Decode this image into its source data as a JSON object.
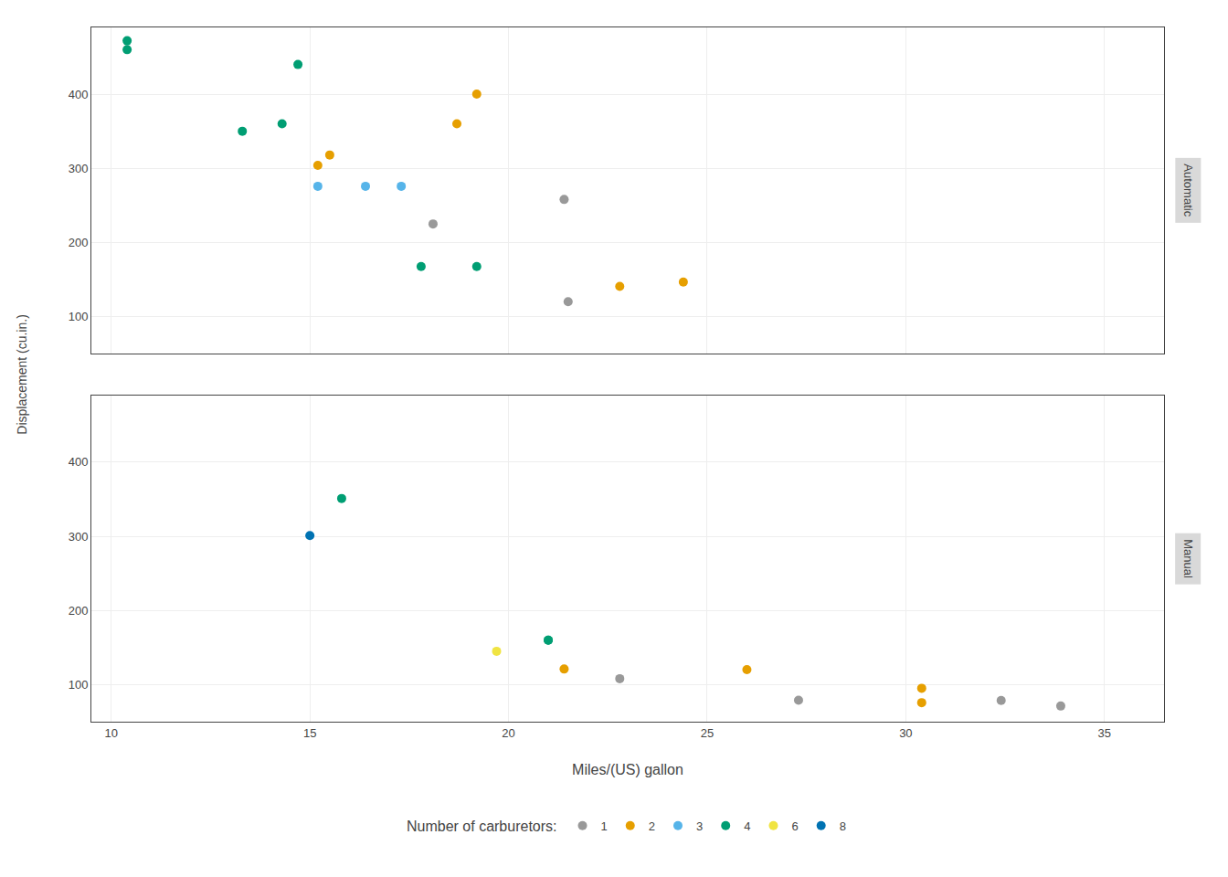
{
  "chart_data": {
    "type": "scatter",
    "xlabel": "Miles/(US) gallon",
    "ylabel": "Displacement (cu.in.)",
    "legend_title": "Number of carburetors:",
    "facets": [
      "Automatic",
      "Manual"
    ],
    "xlim": [
      9.5,
      36.5
    ],
    "ylim": [
      50,
      490
    ],
    "xticks": [
      10,
      15,
      20,
      25,
      30,
      35
    ],
    "yticks": [
      100,
      200,
      300,
      400
    ],
    "grid": true,
    "legend": "bottom",
    "series": [
      {
        "name": "1",
        "color": "#999999",
        "x": [
          [
            21.4,
            18.1,
            21.5
          ],
          [
            22.8,
            32.4,
            33.9,
            27.3
          ]
        ],
        "values": [
          [
            258.0,
            225.0,
            120.1
          ],
          [
            108.0,
            78.7,
            71.1,
            79.0
          ]
        ]
      },
      {
        "name": "2",
        "color": "#E69F00",
        "x": [
          [
            18.7,
            24.4,
            22.8,
            15.5,
            15.2,
            19.2
          ],
          [
            30.4,
            26.0,
            30.4,
            21.4
          ]
        ],
        "values": [
          [
            360.0,
            146.7,
            140.8,
            318.0,
            304.0,
            400.0
          ],
          [
            75.7,
            120.3,
            95.1,
            121.0
          ]
        ]
      },
      {
        "name": "3",
        "color": "#56B4E9",
        "x": [
          [
            16.4,
            17.3,
            15.2
          ],
          []
        ],
        "values": [
          [
            275.8,
            275.8,
            275.8
          ],
          []
        ]
      },
      {
        "name": "4",
        "color": "#009E73",
        "x": [
          [
            14.3,
            19.2,
            17.8,
            10.4,
            10.4,
            14.7,
            13.3
          ],
          [
            21.0,
            21.0,
            15.8
          ]
        ],
        "values": [
          [
            360.0,
            167.6,
            167.6,
            472.0,
            460.0,
            440.0,
            350.0
          ],
          [
            160.0,
            160.0,
            351.0
          ]
        ]
      },
      {
        "name": "6",
        "color": "#F0E442",
        "x": [
          [],
          [
            19.7
          ]
        ],
        "values": [
          [],
          [
            145.0
          ]
        ]
      },
      {
        "name": "8",
        "color": "#0072B2",
        "x": [
          [],
          [
            15.0
          ]
        ],
        "values": [
          [],
          [
            301.0
          ]
        ]
      }
    ]
  }
}
